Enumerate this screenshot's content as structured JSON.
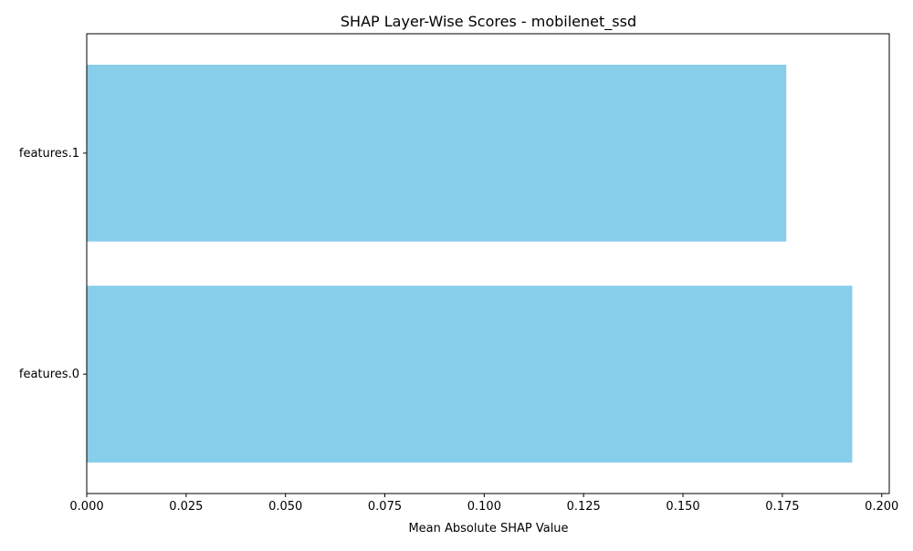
{
  "chart_data": {
    "type": "bar",
    "orientation": "horizontal",
    "title": "SHAP Layer-Wise Scores - mobilenet_ssd",
    "xlabel": "Mean Absolute SHAP Value",
    "ylabel": "",
    "categories": [
      "features.0",
      "features.1"
    ],
    "values": [
      0.1926,
      0.176
    ],
    "xlim": [
      0,
      0.2019
    ],
    "xticks": [
      0.0,
      0.025,
      0.05,
      0.075,
      0.1,
      0.125,
      0.15,
      0.175,
      0.2
    ],
    "xtick_labels": [
      "0.000",
      "0.025",
      "0.050",
      "0.075",
      "0.100",
      "0.125",
      "0.150",
      "0.175",
      "0.200"
    ],
    "bar_color": "#87ceeb",
    "grid": false,
    "legend": "none"
  }
}
